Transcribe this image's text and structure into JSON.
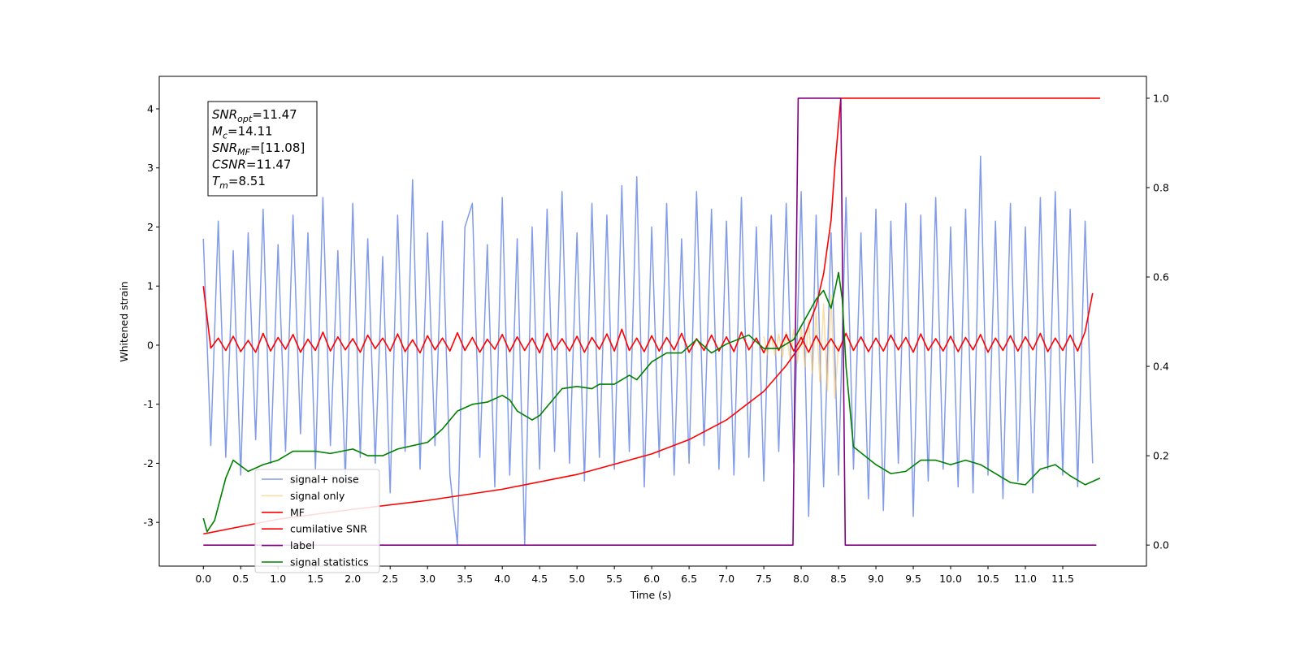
{
  "chart_data": {
    "type": "line",
    "xlabel": "Time (s)",
    "ylabel": "Whitened strain",
    "xlim": [
      -0.59,
      12.62
    ],
    "ylim": [
      -3.74,
      4.55
    ],
    "y2lim": [
      -0.047,
      1.049
    ],
    "xticks": [
      {
        "value": 0,
        "label": "0.0"
      },
      0.5,
      {
        "value": 1,
        "label": "1.0"
      },
      1.5,
      {
        "value": 2,
        "label": "2.0"
      },
      2.5,
      {
        "value": 3,
        "label": "3.0"
      },
      3.5,
      {
        "value": 4,
        "label": "4.0"
      },
      4.5,
      {
        "value": 5,
        "label": "5.0"
      },
      5.5,
      {
        "value": 6,
        "label": "6.0"
      },
      6.5,
      {
        "value": 7,
        "label": "7.0"
      },
      7.5,
      {
        "value": 8,
        "label": "8.0"
      },
      8.5,
      {
        "value": 9,
        "label": "9.0"
      },
      9.5,
      {
        "value": 10,
        "label": "10.0"
      },
      10.5,
      {
        "value": 11,
        "label": "11.0"
      },
      11.5
    ],
    "yticks": [
      -3,
      -2,
      -1,
      0,
      1,
      2,
      3,
      4
    ],
    "y2ticks": [
      {
        "value": 0,
        "label": "0.0"
      },
      0.2,
      0.4,
      0.6,
      0.8,
      {
        "value": 1,
        "label": "1.0"
      }
    ],
    "legend": "lower left",
    "annotations": [
      {
        "text": "SNR",
        "sub": "opt",
        "value": "=11.47"
      },
      {
        "text": "M",
        "sub": "c",
        "value": "=14.11"
      },
      {
        "text": "SNR",
        "sub": "MF",
        "value": "=[11.08]"
      },
      {
        "text": "CSNR",
        "sub": "",
        "value": "=11.47"
      },
      {
        "text": "T",
        "sub": "m",
        "value": "=8.51"
      }
    ],
    "x": [
      0,
      0.1,
      0.2,
      0.3,
      0.4,
      0.5,
      0.6,
      0.7,
      0.8,
      0.9,
      1,
      1.1,
      1.2,
      1.3,
      1.4,
      1.5,
      1.6,
      1.7,
      1.8,
      1.9,
      2,
      2.1,
      2.2,
      2.3,
      2.4,
      2.5,
      2.6,
      2.7,
      2.8,
      2.9,
      3,
      3.1,
      3.2,
      3.3,
      3.4,
      3.5,
      3.6,
      3.7,
      3.8,
      3.9,
      4,
      4.1,
      4.2,
      4.3,
      4.4,
      4.5,
      4.6,
      4.7,
      4.8,
      4.9,
      5,
      5.1,
      5.2,
      5.3,
      5.4,
      5.5,
      5.6,
      5.7,
      5.8,
      5.9,
      6,
      6.1,
      6.2,
      6.3,
      6.4,
      6.5,
      6.6,
      6.7,
      6.8,
      6.9,
      7,
      7.1,
      7.2,
      7.3,
      7.4,
      7.5,
      7.6,
      7.7,
      7.8,
      7.9,
      8,
      8.1,
      8.2,
      8.3,
      8.4,
      8.5,
      8.6,
      8.7,
      8.8,
      8.9,
      9,
      9.1,
      9.2,
      9.3,
      9.4,
      9.5,
      9.6,
      9.7,
      9.8,
      9.9,
      10,
      10.1,
      10.2,
      10.3,
      10.4,
      10.5,
      10.6,
      10.7,
      10.8,
      10.9,
      11,
      11.1,
      11.2,
      11.3,
      11.4,
      11.5,
      11.6,
      11.7,
      11.8,
      11.9
    ],
    "series": [
      {
        "name": "signal+ noise",
        "color": "#7b96e8",
        "values": [
          1.8,
          -1.7,
          2.1,
          -1.9,
          1.6,
          -2.2,
          1.9,
          -1.6,
          2.3,
          -2.0,
          1.7,
          -1.8,
          2.2,
          -1.5,
          1.9,
          -2.1,
          2.5,
          -1.7,
          1.6,
          -2.3,
          2.4,
          -1.9,
          1.8,
          -2.0,
          1.5,
          -2.5,
          2.2,
          -1.8,
          2.8,
          -2.1,
          1.9,
          -1.7,
          2.1,
          -2.2,
          -3.38,
          2.0,
          2.4,
          -1.9,
          1.7,
          -2.4,
          2.5,
          -2.2,
          1.8,
          -3.38,
          2.0,
          -2.1,
          2.3,
          -1.8,
          2.6,
          -2.0,
          1.9,
          -2.3,
          2.4,
          -1.9,
          2.2,
          -2.1,
          2.7,
          -1.8,
          2.85,
          -2.4,
          2.0,
          -1.9,
          2.4,
          -2.2,
          1.8,
          -2.0,
          2.6,
          -1.7,
          2.3,
          -2.1,
          2.1,
          -2.2,
          2.5,
          -1.9,
          2.0,
          -2.3,
          2.2,
          -1.8,
          2.4,
          -2.0,
          2.6,
          -2.9,
          2.2,
          -2.4,
          1.9,
          -2.2,
          2.5,
          -2.1,
          1.9,
          -2.6,
          2.3,
          -2.8,
          2.1,
          -2.0,
          2.4,
          -2.9,
          2.2,
          -2.3,
          2.5,
          -2.1,
          2.0,
          -2.4,
          2.3,
          -2.5,
          3.2,
          -2.2,
          2.1,
          -2.6,
          2.4,
          -2.3,
          2.0,
          -2.5,
          2.5,
          -2.1,
          2.6,
          -2.2,
          2.3,
          -2.4,
          2.1,
          -2.0
        ]
      },
      {
        "name": "signal only",
        "color": "#f9c465",
        "x": [
          7.5,
          7.55,
          7.6,
          7.65,
          7.7,
          7.75,
          7.8,
          7.85,
          7.9,
          7.95,
          8.0,
          8.05,
          8.1,
          8.15,
          8.2,
          8.25,
          8.3,
          8.35,
          8.4,
          8.45,
          8.5
        ],
        "values": [
          0.15,
          -0.16,
          0.17,
          -0.18,
          0.19,
          -0.2,
          0.22,
          -0.24,
          0.27,
          -0.3,
          0.33,
          -0.37,
          0.42,
          -0.48,
          0.55,
          -0.62,
          0.7,
          -0.78,
          0.85,
          -0.9,
          0
        ]
      },
      {
        "name": "MF",
        "color": "#ff0000",
        "values": [
          1.0,
          -0.05,
          0.12,
          -0.09,
          0.15,
          -0.11,
          0.08,
          -0.12,
          0.2,
          -0.1,
          0.13,
          -0.07,
          0.18,
          -0.12,
          0.1,
          -0.09,
          0.22,
          -0.1,
          0.14,
          -0.08,
          0.11,
          -0.12,
          0.17,
          -0.06,
          0.12,
          -0.1,
          0.19,
          -0.11,
          0.09,
          -0.13,
          0.16,
          -0.08,
          0.12,
          -0.1,
          0.21,
          -0.09,
          0.13,
          -0.12,
          0.1,
          -0.07,
          0.18,
          -0.11,
          0.14,
          -0.09,
          0.12,
          -0.13,
          0.2,
          -0.08,
          0.11,
          -0.1,
          0.15,
          -0.12,
          0.13,
          -0.07,
          0.19,
          -0.1,
          0.27,
          -0.09,
          0.12,
          -0.11,
          0.16,
          -0.1,
          0.13,
          -0.08,
          0.2,
          -0.12,
          0.11,
          -0.09,
          0.17,
          -0.1,
          0.14,
          -0.11,
          0.22,
          -0.08,
          0.12,
          -0.13,
          0.15,
          -0.09,
          0.18,
          -0.1,
          0.13,
          -0.12,
          0.16,
          -0.08,
          0.11,
          -0.1,
          0.2,
          -0.09,
          0.14,
          -0.11,
          0.12,
          -0.1,
          0.17,
          -0.08,
          0.13,
          -0.12,
          0.19,
          -0.09,
          0.11,
          -0.1,
          0.15,
          -0.11,
          0.13,
          -0.08,
          0.18,
          -0.12,
          0.12,
          -0.09,
          0.16,
          -0.1,
          0.14,
          -0.08,
          0.2,
          -0.11,
          0.12,
          -0.09,
          0.17,
          -0.1,
          0.23,
          0.88
        ]
      },
      {
        "name": "cumilative SNR",
        "color": "#ff0000",
        "axis": "y2",
        "x": [
          0,
          1,
          2,
          3,
          4,
          5,
          6,
          6.5,
          7,
          7.5,
          7.8,
          8.0,
          8.2,
          8.3,
          8.4,
          8.45,
          8.53,
          12.0
        ],
        "values": [
          0.025,
          0.058,
          0.08,
          0.1,
          0.125,
          0.158,
          0.204,
          0.236,
          0.28,
          0.344,
          0.402,
          0.449,
          0.535,
          0.607,
          0.727,
          0.845,
          1.0,
          1.0
        ]
      },
      {
        "name": "label",
        "color": "#800080",
        "axis": "y2",
        "x": [
          0,
          7.89,
          7.96,
          8.53,
          8.59,
          11.95
        ],
        "values": [
          0,
          0,
          1,
          1,
          0,
          0
        ]
      },
      {
        "name": "signal statistics",
        "color": "#008000",
        "axis": "y2",
        "x": [
          0,
          0.05,
          0.15,
          0.3,
          0.4,
          0.6,
          0.8,
          1.0,
          1.2,
          1.5,
          1.7,
          2.0,
          2.2,
          2.4,
          2.6,
          3.0,
          3.2,
          3.4,
          3.6,
          3.8,
          4.0,
          4.1,
          4.2,
          4.4,
          4.5,
          4.8,
          5.0,
          5.2,
          5.3,
          5.5,
          5.7,
          5.8,
          6.0,
          6.2,
          6.4,
          6.6,
          6.8,
          7.0,
          7.3,
          7.5,
          7.7,
          7.9,
          8.0,
          8.2,
          8.3,
          8.4,
          8.5,
          8.55,
          8.6,
          8.7,
          9.0,
          9.2,
          9.4,
          9.6,
          9.8,
          10.0,
          10.2,
          10.4,
          10.6,
          10.8,
          11.0,
          11.2,
          11.4,
          11.6,
          11.8,
          12.0
        ],
        "values": [
          0.06,
          0.03,
          0.055,
          0.15,
          0.19,
          0.165,
          0.18,
          0.19,
          0.21,
          0.21,
          0.205,
          0.215,
          0.2,
          0.2,
          0.215,
          0.23,
          0.26,
          0.3,
          0.315,
          0.32,
          0.335,
          0.325,
          0.3,
          0.28,
          0.29,
          0.35,
          0.355,
          0.35,
          0.36,
          0.36,
          0.38,
          0.37,
          0.41,
          0.43,
          0.43,
          0.46,
          0.43,
          0.45,
          0.47,
          0.44,
          0.44,
          0.46,
          0.49,
          0.55,
          0.57,
          0.53,
          0.61,
          0.55,
          0.4,
          0.22,
          0.18,
          0.16,
          0.165,
          0.19,
          0.19,
          0.18,
          0.19,
          0.18,
          0.16,
          0.14,
          0.135,
          0.17,
          0.18,
          0.155,
          0.135,
          0.15
        ]
      }
    ]
  }
}
